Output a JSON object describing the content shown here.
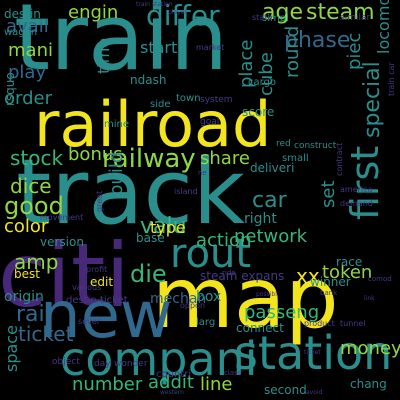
{
  "background": "#000000",
  "palette": {
    "teal": "#2a8f8c",
    "yellow": "#f2e51d",
    "purple": "#482878",
    "green": "#35b779",
    "lime": "#90d743",
    "blue": "#31688e",
    "indigo": "#443983"
  },
  "words": [
    {
      "text": "train",
      "color": "teal"
    },
    {
      "text": "railroad",
      "color": "yellow"
    },
    {
      "text": "track",
      "color": "teal"
    },
    {
      "text": "citi",
      "color": "purple"
    },
    {
      "text": "map",
      "color": "yellow"
    },
    {
      "text": "new",
      "color": "blue"
    },
    {
      "text": "compani",
      "color": "teal"
    },
    {
      "text": "station",
      "color": "teal"
    },
    {
      "text": "expans",
      "color": "teal"
    },
    {
      "text": "first",
      "color": "teal"
    },
    {
      "text": "rout",
      "color": "teal"
    },
    {
      "text": "railway",
      "color": "lime"
    },
    {
      "text": "differ",
      "color": "teal"
    },
    {
      "text": "age",
      "color": "lime"
    },
    {
      "text": "steam",
      "color": "lime"
    },
    {
      "text": "engin",
      "color": "lime"
    },
    {
      "text": "phase",
      "color": "blue"
    },
    {
      "text": "mani",
      "color": "lime"
    },
    {
      "text": "play",
      "color": "blue"
    },
    {
      "text": "good",
      "color": "lime"
    },
    {
      "text": "dice",
      "color": "lime"
    },
    {
      "text": "stock",
      "color": "green"
    },
    {
      "text": "color",
      "color": "yellow"
    },
    {
      "text": "amp",
      "color": "lime"
    },
    {
      "text": "rail",
      "color": "blue"
    },
    {
      "text": "ticket",
      "color": "blue"
    },
    {
      "text": "die",
      "color": "green"
    },
    {
      "text": "valu",
      "color": "green"
    },
    {
      "text": "action",
      "color": "green"
    },
    {
      "text": "network",
      "color": "green"
    },
    {
      "text": "share",
      "color": "lime"
    },
    {
      "text": "bonus",
      "color": "lime"
    },
    {
      "text": "money",
      "color": "lime"
    },
    {
      "text": "passeng",
      "color": "green"
    },
    {
      "text": "token",
      "color": "lime"
    },
    {
      "text": "number",
      "color": "green"
    },
    {
      "text": "addit",
      "color": "green"
    },
    {
      "text": "line",
      "color": "lime"
    },
    {
      "text": "special",
      "color": "teal"
    },
    {
      "text": "set",
      "color": "teal"
    },
    {
      "text": "cube",
      "color": "teal"
    },
    {
      "text": "round",
      "color": "teal"
    },
    {
      "text": "place",
      "color": "teal"
    },
    {
      "text": "piec",
      "color": "teal"
    },
    {
      "text": "locomot",
      "color": "teal"
    },
    {
      "text": "order",
      "color": "teal"
    },
    {
      "text": "avail",
      "color": "blue"
    },
    {
      "text": "start",
      "color": "teal"
    },
    {
      "text": "time",
      "color": "teal"
    },
    {
      "text": "build",
      "color": "teal"
    },
    {
      "text": "car",
      "color": "teal"
    },
    {
      "text": "xx",
      "color": "yellow"
    },
    {
      "text": "box",
      "color": "teal"
    },
    {
      "text": "space",
      "color": "teal"
    },
    {
      "text": "origin",
      "color": "teal"
    },
    {
      "text": "type",
      "color": "yellow"
    },
    {
      "text": "base",
      "color": "teal"
    },
    {
      "text": "right",
      "color": "teal"
    },
    {
      "text": "winner",
      "color": "teal"
    },
    {
      "text": "race",
      "color": "teal"
    },
    {
      "text": "best",
      "color": "yellow"
    },
    {
      "text": "rsquo",
      "color": "teal"
    },
    {
      "text": "destin",
      "color": "teal"
    },
    {
      "text": "wagon",
      "color": "teal"
    },
    {
      "text": "ndash",
      "color": "teal"
    },
    {
      "text": "version",
      "color": "teal"
    },
    {
      "text": "edit",
      "color": "yellow"
    },
    {
      "text": "mechan",
      "color": "blue"
    },
    {
      "text": "steam expans",
      "color": "indigo"
    },
    {
      "text": "destin ticket",
      "color": "indigo"
    },
    {
      "text": "connect",
      "color": "teal"
    },
    {
      "text": "second",
      "color": "teal"
    },
    {
      "text": "chang",
      "color": "teal"
    },
    {
      "text": "deliveri",
      "color": "teal"
    },
    {
      "text": "score",
      "color": "teal"
    },
    {
      "text": "side",
      "color": "teal"
    },
    {
      "text": "mine",
      "color": "teal"
    },
    {
      "text": "town",
      "color": "teal"
    },
    {
      "text": "small",
      "color": "teal"
    },
    {
      "text": "simpl",
      "color": "teal"
    },
    {
      "text": "similar",
      "color": "indigo"
    },
    {
      "text": "state",
      "color": "indigo"
    },
    {
      "text": "cargo",
      "color": "teal"
    },
    {
      "text": "market",
      "color": "indigo"
    },
    {
      "text": "system",
      "color": "indigo"
    },
    {
      "text": "red",
      "color": "teal"
    },
    {
      "text": "construct",
      "color": "teal"
    },
    {
      "text": "goal",
      "color": "indigo"
    },
    {
      "text": "island",
      "color": "indigo"
    },
    {
      "text": "movement",
      "color": "indigo"
    },
    {
      "text": "great",
      "color": "indigo"
    },
    {
      "text": "larg",
      "color": "teal"
    },
    {
      "text": "countri",
      "color": "indigo"
    },
    {
      "text": "day",
      "color": "indigo"
    },
    {
      "text": "wonder",
      "color": "indigo"
    },
    {
      "text": "object",
      "color": "indigo"
    },
    {
      "text": "oppon",
      "color": "indigo"
    },
    {
      "text": "profit",
      "color": "indigo"
    },
    {
      "text": "various",
      "color": "indigo"
    },
    {
      "text": "sever",
      "color": "indigo"
    },
    {
      "text": "tunnel",
      "color": "indigo"
    },
    {
      "text": "america",
      "color": "indigo"
    },
    {
      "text": "demand",
      "color": "indigo"
    },
    {
      "text": "train car",
      "color": "indigo"
    },
    {
      "text": "contract",
      "color": "indigo"
    },
    {
      "text": "product",
      "color": "indigo"
    },
    {
      "text": "player",
      "color": "indigo"
    },
    {
      "text": "avoid",
      "color": "indigo"
    },
    {
      "text": "western",
      "color": "indigo"
    },
    {
      "text": "possibl",
      "color": "indigo"
    },
    {
      "text": "bank",
      "color": "indigo"
    },
    {
      "text": "ride",
      "color": "indigo"
    },
    {
      "text": "class",
      "color": "indigo"
    },
    {
      "text": "ticket",
      "color": "indigo"
    },
    {
      "text": "comod",
      "color": "indigo"
    },
    {
      "text": "link",
      "color": "indigo"
    },
    {
      "text": "ne",
      "color": "indigo"
    },
    {
      "text": "train station",
      "color": "indigo"
    }
  ]
}
